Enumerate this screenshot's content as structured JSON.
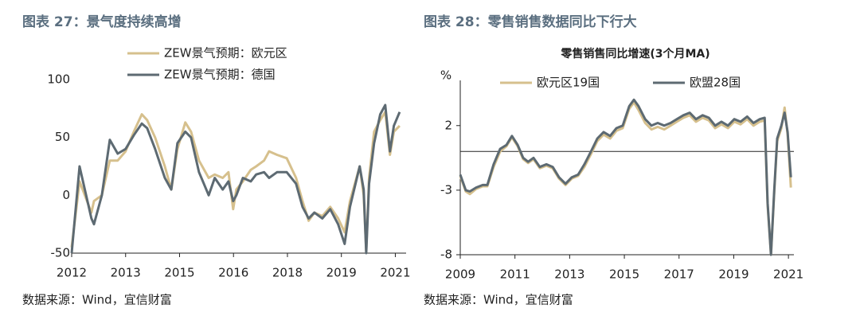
{
  "chart_data": [
    {
      "type": "line",
      "title": "图表 27：景气度持续高增",
      "source": "数据来源：Wind，宜信财富",
      "x": [
        2012.0,
        2012.22,
        2012.55,
        2012.62,
        2012.84,
        2013.06,
        2013.28,
        2013.5,
        2013.73,
        2013.95,
        2014.1,
        2014.32,
        2014.59,
        2014.77,
        2014.94,
        2015.16,
        2015.32,
        2015.54,
        2015.81,
        2015.98,
        2016.2,
        2016.36,
        2016.49,
        2016.58,
        2016.76,
        2016.98,
        2017.13,
        2017.35,
        2017.49,
        2017.71,
        2017.98,
        2018.24,
        2018.42,
        2018.59,
        2018.75,
        2018.97,
        2019.19,
        2019.41,
        2019.59,
        2019.74,
        2020.01,
        2020.12,
        2020.19,
        2020.27,
        2020.41,
        2020.58,
        2020.72,
        2020.85,
        2020.96,
        2021.12
      ],
      "series": [
        {
          "name": "ZEW景气预期：欧元区",
          "color": "#d6c08d",
          "values": [
            -45,
            12,
            -15,
            -5,
            0,
            30,
            30,
            38,
            55,
            70,
            65,
            50,
            25,
            5,
            40,
            63,
            55,
            30,
            15,
            18,
            15,
            20,
            -12,
            5,
            12,
            22,
            25,
            30,
            38,
            35,
            32,
            15,
            -5,
            -22,
            -15,
            -18,
            -10,
            -20,
            -32,
            -5,
            25,
            0,
            -48,
            15,
            55,
            65,
            72,
            35,
            55,
            60
          ]
        },
        {
          "name": "ZEW景气预期：德国",
          "color": "#5d6a72",
          "values": [
            -50,
            25,
            -20,
            -25,
            0,
            48,
            36,
            40,
            52,
            62,
            58,
            40,
            15,
            5,
            45,
            55,
            50,
            20,
            0,
            15,
            5,
            12,
            -5,
            0,
            15,
            12,
            18,
            20,
            15,
            20,
            20,
            10,
            -10,
            -20,
            -15,
            -20,
            -12,
            -25,
            -42,
            -10,
            25,
            5,
            -50,
            10,
            45,
            70,
            78,
            38,
            60,
            72
          ]
        }
      ],
      "xlim": [
        2012,
        2021.3
      ],
      "xticks": [
        2012,
        {
          "value": 2013.5,
          "label": "2013"
        },
        2015,
        {
          "value": 2016.5,
          "label": "2016"
        },
        2018,
        {
          "value": 2019.5,
          "label": "2019"
        },
        2021
      ],
      "ylim": [
        -50,
        100
      ],
      "yticks": [
        100,
        50,
        0,
        -50
      ],
      "legend": "top"
    },
    {
      "type": "line",
      "title": "图表 28：零售销售数据同比下行大",
      "subtitle": "零售销售同比增速(3个月MA)",
      "source": "数据来源：Wind，宜信财富",
      "ylabel": "%",
      "x": [
        2009.0,
        2009.2,
        2009.35,
        2009.58,
        2009.82,
        2009.99,
        2010.22,
        2010.46,
        2010.69,
        2010.89,
        2011.1,
        2011.3,
        2011.48,
        2011.68,
        2011.91,
        2012.15,
        2012.38,
        2012.61,
        2012.85,
        2013.08,
        2013.31,
        2013.54,
        2013.78,
        2014.01,
        2014.24,
        2014.48,
        2014.71,
        2014.94,
        2015.18,
        2015.35,
        2015.52,
        2015.76,
        2015.99,
        2016.22,
        2016.46,
        2016.69,
        2016.92,
        2017.16,
        2017.39,
        2017.62,
        2017.86,
        2018.09,
        2018.32,
        2018.55,
        2018.79,
        2019.02,
        2019.25,
        2019.49,
        2019.72,
        2019.95,
        2020.13,
        2020.24,
        2020.36,
        2020.48,
        2020.59,
        2020.74,
        2020.86,
        2020.97,
        2021.09
      ],
      "series": [
        {
          "name": "欧元区19国",
          "color": "#d6c08d",
          "values": [
            -1.9,
            -3.1,
            -3.3,
            -2.9,
            -2.7,
            -2.7,
            -1.2,
            0.0,
            0.4,
            1.1,
            0.4,
            -0.6,
            -0.9,
            -0.6,
            -1.3,
            -1.1,
            -1.3,
            -2.1,
            -2.6,
            -2.1,
            -1.9,
            -1.2,
            -0.2,
            0.8,
            1.3,
            1.0,
            1.6,
            1.8,
            3.3,
            3.8,
            3.2,
            2.2,
            1.7,
            1.9,
            1.7,
            2.0,
            2.3,
            2.6,
            2.8,
            2.3,
            2.6,
            2.4,
            1.8,
            2.1,
            1.8,
            2.3,
            2.1,
            2.5,
            2.0,
            2.3,
            2.4,
            -4.2,
            -8.0,
            -3.2,
            0.8,
            1.8,
            3.4,
            1.3,
            -2.8
          ]
        },
        {
          "name": "欧盟28国",
          "color": "#5d6a72",
          "values": [
            -1.8,
            -3.0,
            -3.1,
            -2.8,
            -2.6,
            -2.6,
            -1.0,
            0.2,
            0.5,
            1.2,
            0.5,
            -0.5,
            -0.8,
            -0.5,
            -1.2,
            -1.0,
            -1.2,
            -2.0,
            -2.5,
            -2.0,
            -1.8,
            -1.0,
            0.0,
            1.0,
            1.5,
            1.2,
            1.8,
            2.0,
            3.5,
            4.0,
            3.5,
            2.5,
            2.0,
            2.2,
            2.0,
            2.2,
            2.5,
            2.8,
            3.0,
            2.5,
            2.8,
            2.6,
            2.0,
            2.3,
            2.0,
            2.5,
            2.3,
            2.7,
            2.2,
            2.5,
            2.6,
            -4,
            -8,
            -3,
            1.0,
            2.0,
            3.0,
            1.5,
            -2.0
          ]
        }
      ],
      "xlim": [
        2009,
        2021.2
      ],
      "xticks": [
        2009,
        2011,
        2013,
        2015,
        2017,
        2019,
        2021
      ],
      "ylim": [
        -8,
        5.5
      ],
      "yticks": [
        2,
        -3,
        -8
      ],
      "legend": "top"
    }
  ]
}
